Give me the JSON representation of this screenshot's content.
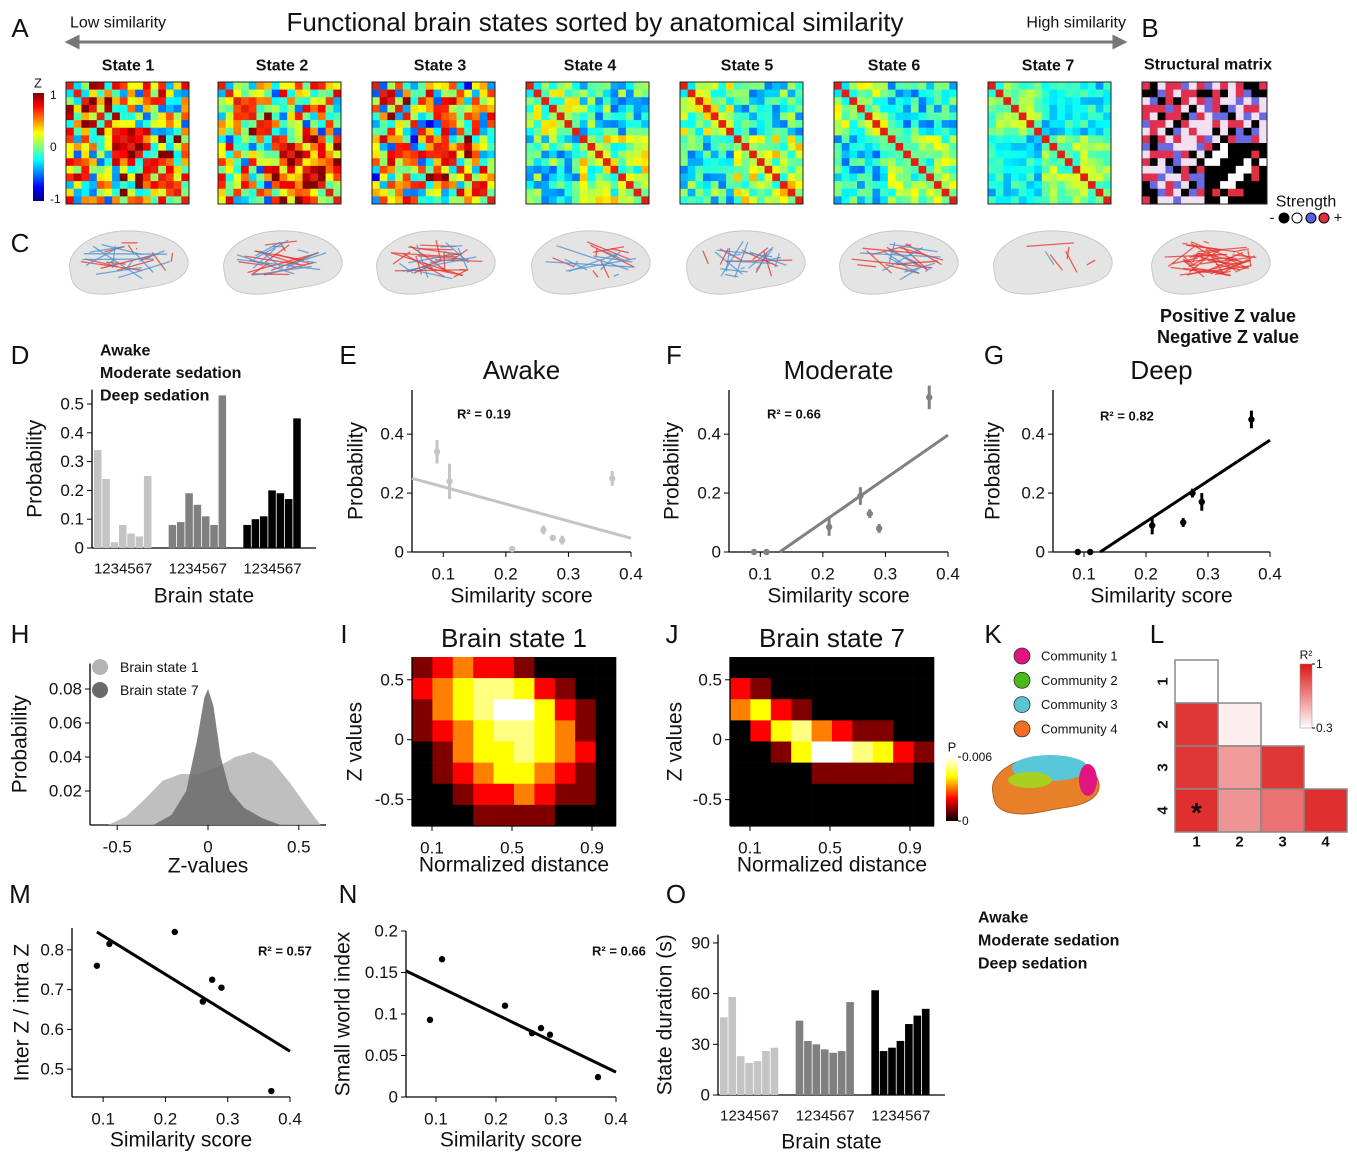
{
  "figure": {
    "panel_letters": [
      "A",
      "B",
      "C",
      "D",
      "E",
      "F",
      "G",
      "H",
      "I",
      "J",
      "K",
      "L",
      "M",
      "N",
      "O"
    ],
    "header": {
      "left": "Low similarity",
      "title": "Functional brain states sorted by anatomical similarity",
      "right": "High similarity"
    },
    "states": [
      "State 1",
      "State 2",
      "State 3",
      "State 4",
      "State 5",
      "State 6",
      "State 7"
    ],
    "structural_title": "Structural matrix",
    "z_colorbar": {
      "label": "Z",
      "ticks": [
        1,
        0,
        -1
      ]
    },
    "strength": {
      "label": "Strength",
      "low": "-",
      "high": "+"
    },
    "z_legend": [
      {
        "text": "Positive Z value",
        "color": "#e8302a"
      },
      {
        "text": "Negative Z value",
        "color": "#2a7bc0"
      }
    ],
    "communities": [
      {
        "name": "Community 1",
        "color": "#e0157e"
      },
      {
        "name": "Community 2",
        "color": "#4cb81a"
      },
      {
        "name": "Community 3",
        "color": "#5cc3d0"
      },
      {
        "name": "Community 4",
        "color": "#f07020"
      }
    ]
  },
  "chart_data": [
    {
      "type": "bar",
      "categories": [
        "1",
        "2",
        "3",
        "4",
        "5",
        "6",
        "7"
      ],
      "series": [
        {
          "name": "Awake",
          "color": "#c4c4c4",
          "values": [
            0.34,
            0.24,
            0.02,
            0.08,
            0.05,
            0.04,
            0.25
          ]
        },
        {
          "name": "Moderate sedation",
          "color": "#808080",
          "values": [
            0.08,
            0.09,
            0.19,
            0.15,
            0.11,
            0.08,
            0.53
          ]
        },
        {
          "name": "Deep sedation",
          "color": "#000000",
          "values": [
            0.08,
            0.1,
            0.11,
            0.2,
            0.19,
            0.17,
            0.45
          ]
        }
      ],
      "ylim": [
        0,
        0.55
      ],
      "yticks": [
        0,
        0.1,
        0.2,
        0.3,
        0.4,
        0.5
      ],
      "xlabel": "Brain state",
      "ylabel": "Probability"
    },
    {
      "type": "scatter",
      "title": "Awake",
      "color": "#c4c4c4",
      "x": [
        0.09,
        0.11,
        0.21,
        0.26,
        0.275,
        0.29,
        0.37
      ],
      "values": [
        0.34,
        0.24,
        0.01,
        0.075,
        0.048,
        0.04,
        0.25
      ],
      "errors": [
        0.04,
        0.06,
        0.005,
        0.015,
        0.01,
        0.015,
        0.025
      ],
      "fit": {
        "x": [
          0.05,
          0.4
        ],
        "y": [
          0.25,
          0.047
        ]
      },
      "annotation": "R² = 0.19",
      "xlim": [
        0.05,
        0.4
      ],
      "ylim": [
        0,
        0.55
      ],
      "xticks": [
        0.1,
        0.2,
        0.3,
        0.4
      ],
      "yticks": [
        0,
        0.2,
        0.4
      ],
      "xlabel": "Similarity score",
      "ylabel": "Probability"
    },
    {
      "type": "scatter",
      "title": "Moderate",
      "color": "#808080",
      "x": [
        0.09,
        0.11,
        0.21,
        0.26,
        0.275,
        0.29,
        0.37
      ],
      "values": [
        0,
        0,
        0.085,
        0.19,
        0.13,
        0.08,
        0.525
      ],
      "errors": [
        0.003,
        0.003,
        0.03,
        0.03,
        0.015,
        0.015,
        0.04
      ],
      "fit": {
        "x": [
          0.131,
          0.4
        ],
        "y": [
          0,
          0.397
        ]
      },
      "annotation": "R² = 0.66",
      "xlim": [
        0.05,
        0.4
      ],
      "ylim": [
        0,
        0.55
      ],
      "xticks": [
        0.1,
        0.2,
        0.3,
        0.4
      ],
      "yticks": [
        0,
        0.2,
        0.4
      ],
      "xlabel": "Similarity score",
      "ylabel": "Probability"
    },
    {
      "type": "scatter",
      "title": "Deep",
      "color": "#000000",
      "x": [
        0.09,
        0.11,
        0.21,
        0.26,
        0.275,
        0.29,
        0.37
      ],
      "values": [
        0,
        0,
        0.09,
        0.1,
        0.2,
        0.17,
        0.45
      ],
      "errors": [
        0.003,
        0.003,
        0.03,
        0.015,
        0.015,
        0.03,
        0.03
      ],
      "fit": {
        "x": [
          0.126,
          0.4
        ],
        "y": [
          0,
          0.38
        ]
      },
      "annotation": "R² = 0.82",
      "xlim": [
        0.05,
        0.4
      ],
      "ylim": [
        0,
        0.55
      ],
      "xticks": [
        0.1,
        0.2,
        0.3,
        0.4
      ],
      "yticks": [
        0,
        0.2,
        0.4
      ],
      "xlabel": "Similarity score",
      "ylabel": "Probability"
    },
    {
      "type": "area",
      "series": [
        {
          "name": "Brain state 1",
          "color": "#b4b4b4",
          "x": [
            -0.55,
            -0.45,
            -0.35,
            -0.25,
            -0.15,
            -0.05,
            0.05,
            0.15,
            0.25,
            0.35,
            0.45,
            0.55,
            0.62
          ],
          "values": [
            0,
            0.005,
            0.015,
            0.026,
            0.03,
            0.03,
            0.034,
            0.04,
            0.043,
            0.038,
            0.025,
            0.01,
            0
          ]
        },
        {
          "name": "Brain state 7",
          "color": "#6a6a6a",
          "x": [
            -0.3,
            -0.2,
            -0.12,
            -0.06,
            -0.02,
            0,
            0.03,
            0.07,
            0.12,
            0.2,
            0.3,
            0.4
          ],
          "values": [
            0,
            0.006,
            0.02,
            0.05,
            0.075,
            0.08,
            0.07,
            0.04,
            0.02,
            0.01,
            0.004,
            0
          ]
        }
      ],
      "xlim": [
        -0.65,
        0.65
      ],
      "ylim": [
        0,
        0.095
      ],
      "xticks": [
        -0.5,
        0,
        0.5
      ],
      "yticks": [
        0.02,
        0.04,
        0.06,
        0.08
      ],
      "xlabel": "Z-values",
      "ylabel": "Probability"
    },
    {
      "type": "heatmap",
      "title": "Brain state 1",
      "values": [
        [
          0.001,
          0.002,
          0.003,
          0.002,
          0.002,
          0.001,
          0,
          0,
          0,
          0
        ],
        [
          0.002,
          0.003,
          0.004,
          0.005,
          0.005,
          0.004,
          0.002,
          0.001,
          0,
          0
        ],
        [
          0.001,
          0.003,
          0.004,
          0.005,
          0.006,
          0.006,
          0.004,
          0.002,
          0.001,
          0
        ],
        [
          0.001,
          0.002,
          0.003,
          0.004,
          0.005,
          0.005,
          0.004,
          0.003,
          0.001,
          0
        ],
        [
          0,
          0.001,
          0.003,
          0.004,
          0.004,
          0.005,
          0.004,
          0.003,
          0.002,
          0
        ],
        [
          0,
          0.001,
          0.002,
          0.003,
          0.004,
          0.004,
          0.003,
          0.002,
          0.001,
          0
        ],
        [
          0,
          0,
          0.001,
          0.002,
          0.002,
          0.003,
          0.002,
          0.001,
          0.001,
          0
        ],
        [
          0,
          0,
          0,
          0.001,
          0.001,
          0.001,
          0.001,
          0,
          0,
          0
        ]
      ],
      "clim": [
        0,
        0.006
      ],
      "xlim": [
        0,
        1.02
      ],
      "ylim": [
        -0.72,
        0.69
      ],
      "xticks": [
        0.1,
        0.5,
        0.9
      ],
      "yticks": [
        -0.5,
        0,
        0.5
      ],
      "xlabel": "Normalized distance",
      "ylabel": "Z values"
    },
    {
      "type": "heatmap",
      "title": "Brain state 7",
      "values": [
        [
          0,
          0,
          0,
          0,
          0,
          0,
          0,
          0,
          0,
          0
        ],
        [
          0.002,
          0.001,
          0,
          0,
          0,
          0,
          0,
          0,
          0,
          0
        ],
        [
          0.003,
          0.004,
          0.002,
          0.001,
          0,
          0,
          0,
          0,
          0,
          0
        ],
        [
          0,
          0.002,
          0.004,
          0.005,
          0.003,
          0.002,
          0.001,
          0.001,
          0,
          0
        ],
        [
          0,
          0,
          0.001,
          0.004,
          0.006,
          0.006,
          0.005,
          0.004,
          0.002,
          0.001
        ],
        [
          0,
          0,
          0,
          0,
          0.001,
          0.001,
          0.001,
          0.001,
          0.001,
          0
        ],
        [
          0,
          0,
          0,
          0,
          0,
          0,
          0,
          0,
          0,
          0
        ],
        [
          0,
          0,
          0,
          0,
          0,
          0,
          0,
          0,
          0,
          0
        ]
      ],
      "clim": [
        0,
        0.006
      ],
      "colorbar": {
        "label": "P",
        "ticks": [
          0,
          0.006
        ]
      },
      "xlim": [
        0,
        1.02
      ],
      "ylim": [
        -0.72,
        0.69
      ],
      "xticks": [
        0.1,
        0.5,
        0.9
      ],
      "yticks": [
        -0.5,
        0,
        0.5
      ],
      "xlabel": "Normalized distance",
      "ylabel": "Z values"
    },
    {
      "type": "matrix",
      "categories": [
        "1",
        "2",
        "3",
        "4"
      ],
      "values": [
        [
          0.3,
          null,
          null,
          null
        ],
        [
          0.9,
          0.35,
          null,
          null
        ],
        [
          0.9,
          0.6,
          0.9,
          null
        ],
        [
          0.92,
          0.62,
          0.72,
          0.92
        ]
      ],
      "annotations": [
        {
          "text": "*",
          "row": 3,
          "col": 0
        }
      ],
      "clim": [
        0.3,
        1
      ],
      "colorbar": {
        "label": "R²",
        "ticks": [
          1,
          0.3
        ]
      }
    },
    {
      "type": "scatter",
      "color": "#000000",
      "x": [
        0.09,
        0.11,
        0.215,
        0.26,
        0.275,
        0.29,
        0.37
      ],
      "values": [
        0.76,
        0.815,
        0.845,
        0.67,
        0.725,
        0.705,
        0.445
      ],
      "fit": {
        "x": [
          0.09,
          0.4
        ],
        "y": [
          0.845,
          0.545
        ]
      },
      "annotation": "R² = 0.57",
      "xlim": [
        0.05,
        0.4
      ],
      "ylim": [
        0.43,
        0.855
      ],
      "xticks": [
        0.1,
        0.2,
        0.3,
        0.4
      ],
      "yticks": [
        0.5,
        0.6,
        0.7,
        0.8
      ],
      "xlabel": "Similarity score",
      "ylabel": "Inter Z / intra Z"
    },
    {
      "type": "scatter",
      "color": "#000000",
      "x": [
        0.09,
        0.11,
        0.215,
        0.26,
        0.275,
        0.29,
        0.37
      ],
      "values": [
        0.093,
        0.166,
        0.11,
        0.077,
        0.083,
        0.075,
        0.024
      ],
      "fit": {
        "x": [
          0.05,
          0.4
        ],
        "y": [
          0.152,
          0.03
        ]
      },
      "annotation": "R² = 0.66",
      "xlim": [
        0.05,
        0.4
      ],
      "ylim": [
        0,
        0.2
      ],
      "xticks": [
        0.1,
        0.2,
        0.3,
        0.4
      ],
      "yticks": [
        0,
        0.05,
        0.1,
        0.15,
        0.2
      ],
      "xlabel": "Similarity score",
      "ylabel": "Small world index"
    },
    {
      "type": "bar",
      "categories": [
        "1",
        "2",
        "3",
        "4",
        "5",
        "6",
        "7"
      ],
      "series": [
        {
          "name": "Awake",
          "color": "#c4c4c4",
          "values": [
            46,
            58,
            23,
            19,
            20,
            26,
            28
          ]
        },
        {
          "name": "Moderate sedation",
          "color": "#808080",
          "values": [
            44,
            32,
            30,
            27,
            25,
            26,
            55
          ]
        },
        {
          "name": "Deep sedation",
          "color": "#000000",
          "values": [
            62,
            26,
            28,
            32,
            42,
            47,
            51
          ]
        }
      ],
      "ylim": [
        0,
        95
      ],
      "yticks": [
        0,
        30,
        60,
        90
      ],
      "xlabel": "Brain state",
      "ylabel": "State duration (s)"
    }
  ]
}
